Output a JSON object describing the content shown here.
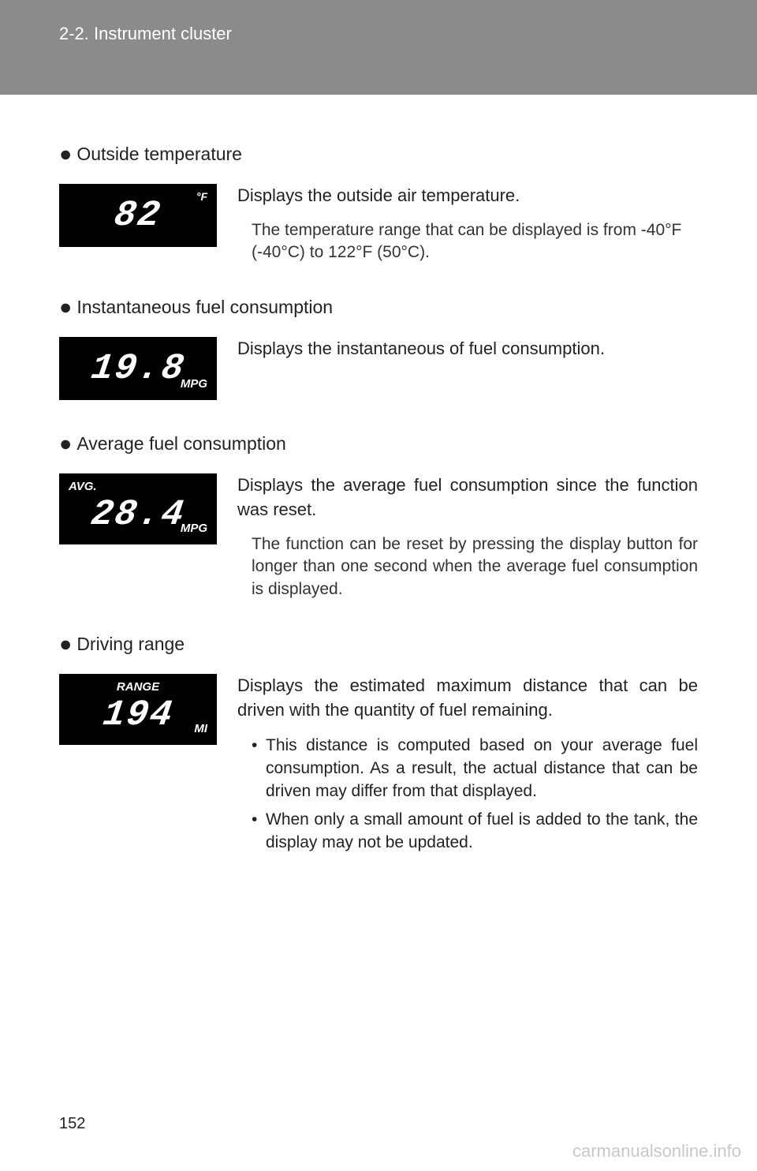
{
  "header": {
    "section_label": "2-2. Instrument cluster"
  },
  "sections": [
    {
      "heading": "Outside temperature",
      "display": {
        "value": "82",
        "unit_top_right": "°F"
      },
      "main_text": "Displays the outside air temperature.",
      "sub_text": "The temperature range that can be displayed is from -40°F (-40°C) to 122°F (50°C)."
    },
    {
      "heading": "Instantaneous fuel consumption",
      "display": {
        "value": "19.8",
        "unit_bottom_right": "MPG"
      },
      "main_text": "Displays the instantaneous of fuel consumption."
    },
    {
      "heading": "Average fuel consumption",
      "display": {
        "label_top_left": "AVG.",
        "value": "28.4",
        "unit_bottom_right": "MPG"
      },
      "main_text": "Displays the average fuel consumption since the function was reset.",
      "sub_text": "The function can be reset by pressing the display button for longer than one second when the average fuel consumption is displayed."
    },
    {
      "heading": "Driving range",
      "display": {
        "label_top_center": "RANGE",
        "value": "194",
        "unit_bottom_right": "MI"
      },
      "main_text": "Displays the estimated maximum distance that can be driven with the quantity of fuel remaining.",
      "bullets": [
        "This distance is computed based on your average fuel consumption. As a result, the actual distance that can be driven may differ from that displayed.",
        "When only a small amount of fuel is added to the tank, the display may not be updated."
      ]
    }
  ],
  "page_number": "152",
  "watermark": "carmanualsonline.info"
}
